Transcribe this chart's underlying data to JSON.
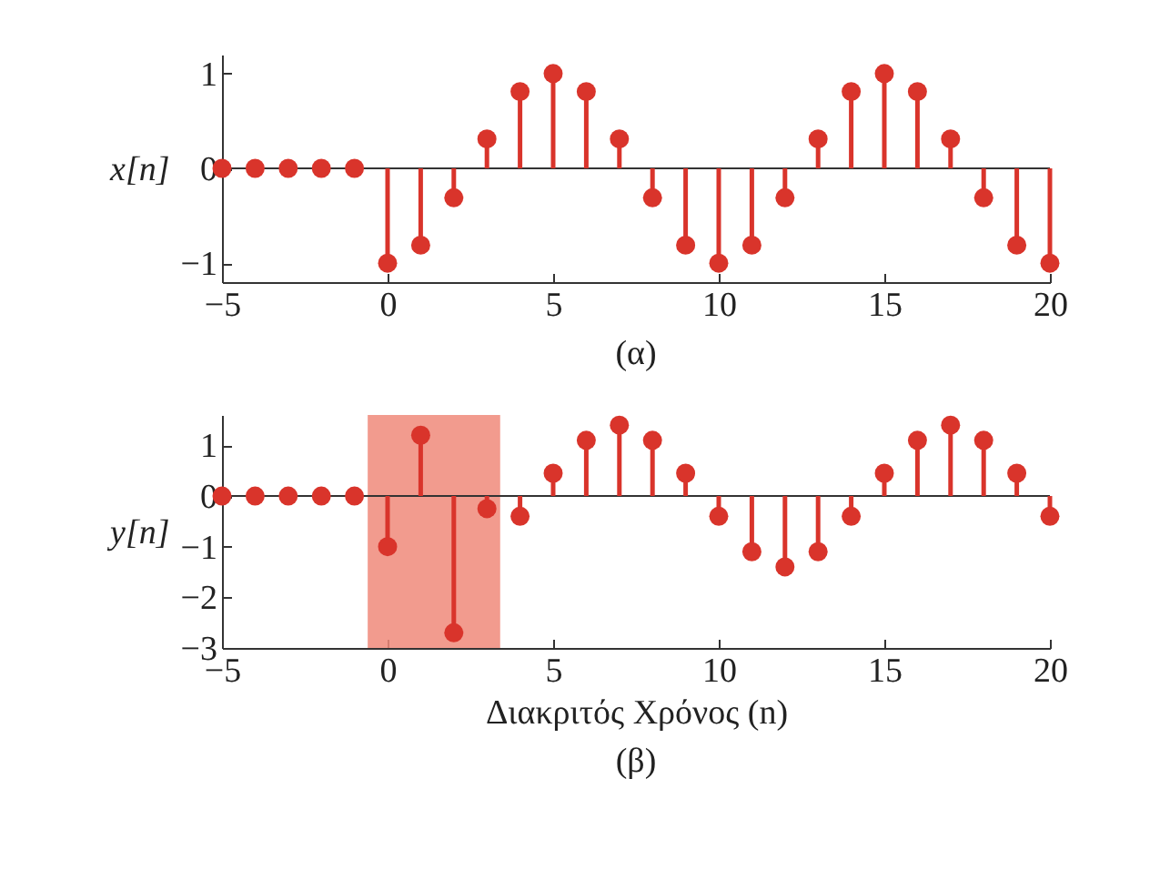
{
  "chart_data": [
    {
      "type": "lollipop",
      "ylabel": "x[n]",
      "annotations": [
        "(α)"
      ],
      "marker": "circle",
      "x": [
        -5,
        -4,
        -3,
        -2,
        -1,
        0,
        1,
        2,
        3,
        4,
        5,
        6,
        7,
        8,
        9,
        10,
        11,
        12,
        13,
        14,
        15,
        16,
        17,
        18,
        19,
        20
      ],
      "series": [
        {
          "color": "#d9342b",
          "values": [
            0,
            0,
            0,
            0,
            0,
            -1,
            -0.81,
            -0.31,
            0.31,
            0.81,
            1,
            0.81,
            0.31,
            -0.31,
            -0.81,
            -1,
            -0.81,
            -0.31,
            0.31,
            0.81,
            1,
            0.81,
            0.31,
            -0.31,
            -0.81,
            -1
          ]
        }
      ],
      "xlim": [
        -5,
        20
      ],
      "xticks": [
        -5,
        0,
        5,
        10,
        15,
        20
      ],
      "ylim": [
        -1.2,
        1.2
      ],
      "yticks": [
        -1,
        0,
        1
      ]
    },
    {
      "type": "lollipop",
      "ylabel": "y[n]",
      "xlabel": "Διακριτός Χρόνος   (n)",
      "annotations": [
        "(β)"
      ],
      "marker": "circle",
      "x": [
        -5,
        -4,
        -3,
        -2,
        -1,
        0,
        1,
        2,
        3,
        4,
        5,
        6,
        7,
        8,
        9,
        10,
        11,
        12,
        13,
        14,
        15,
        16,
        17,
        18,
        19,
        20
      ],
      "series": [
        {
          "color": "#d9342b",
          "values": [
            0,
            0,
            0,
            0,
            0,
            -1,
            1.2,
            -2.7,
            -0.25,
            -0.4,
            0.45,
            1.1,
            1.4,
            1.1,
            0.45,
            -0.4,
            -1.1,
            -1.4,
            -1.1,
            -0.4,
            0.45,
            1.1,
            1.4,
            1.1,
            0.45,
            -0.4
          ]
        }
      ],
      "bands": [
        {
          "axis": "x",
          "from": -0.6,
          "to": 3.4,
          "color": "#f08a7a"
        }
      ],
      "xlim": [
        -5,
        20
      ],
      "xticks": [
        -5,
        0,
        5,
        10,
        15,
        20
      ],
      "ylim": [
        -3,
        1.6
      ],
      "yticks": [
        -3,
        -2,
        -1,
        0,
        1
      ]
    }
  ]
}
